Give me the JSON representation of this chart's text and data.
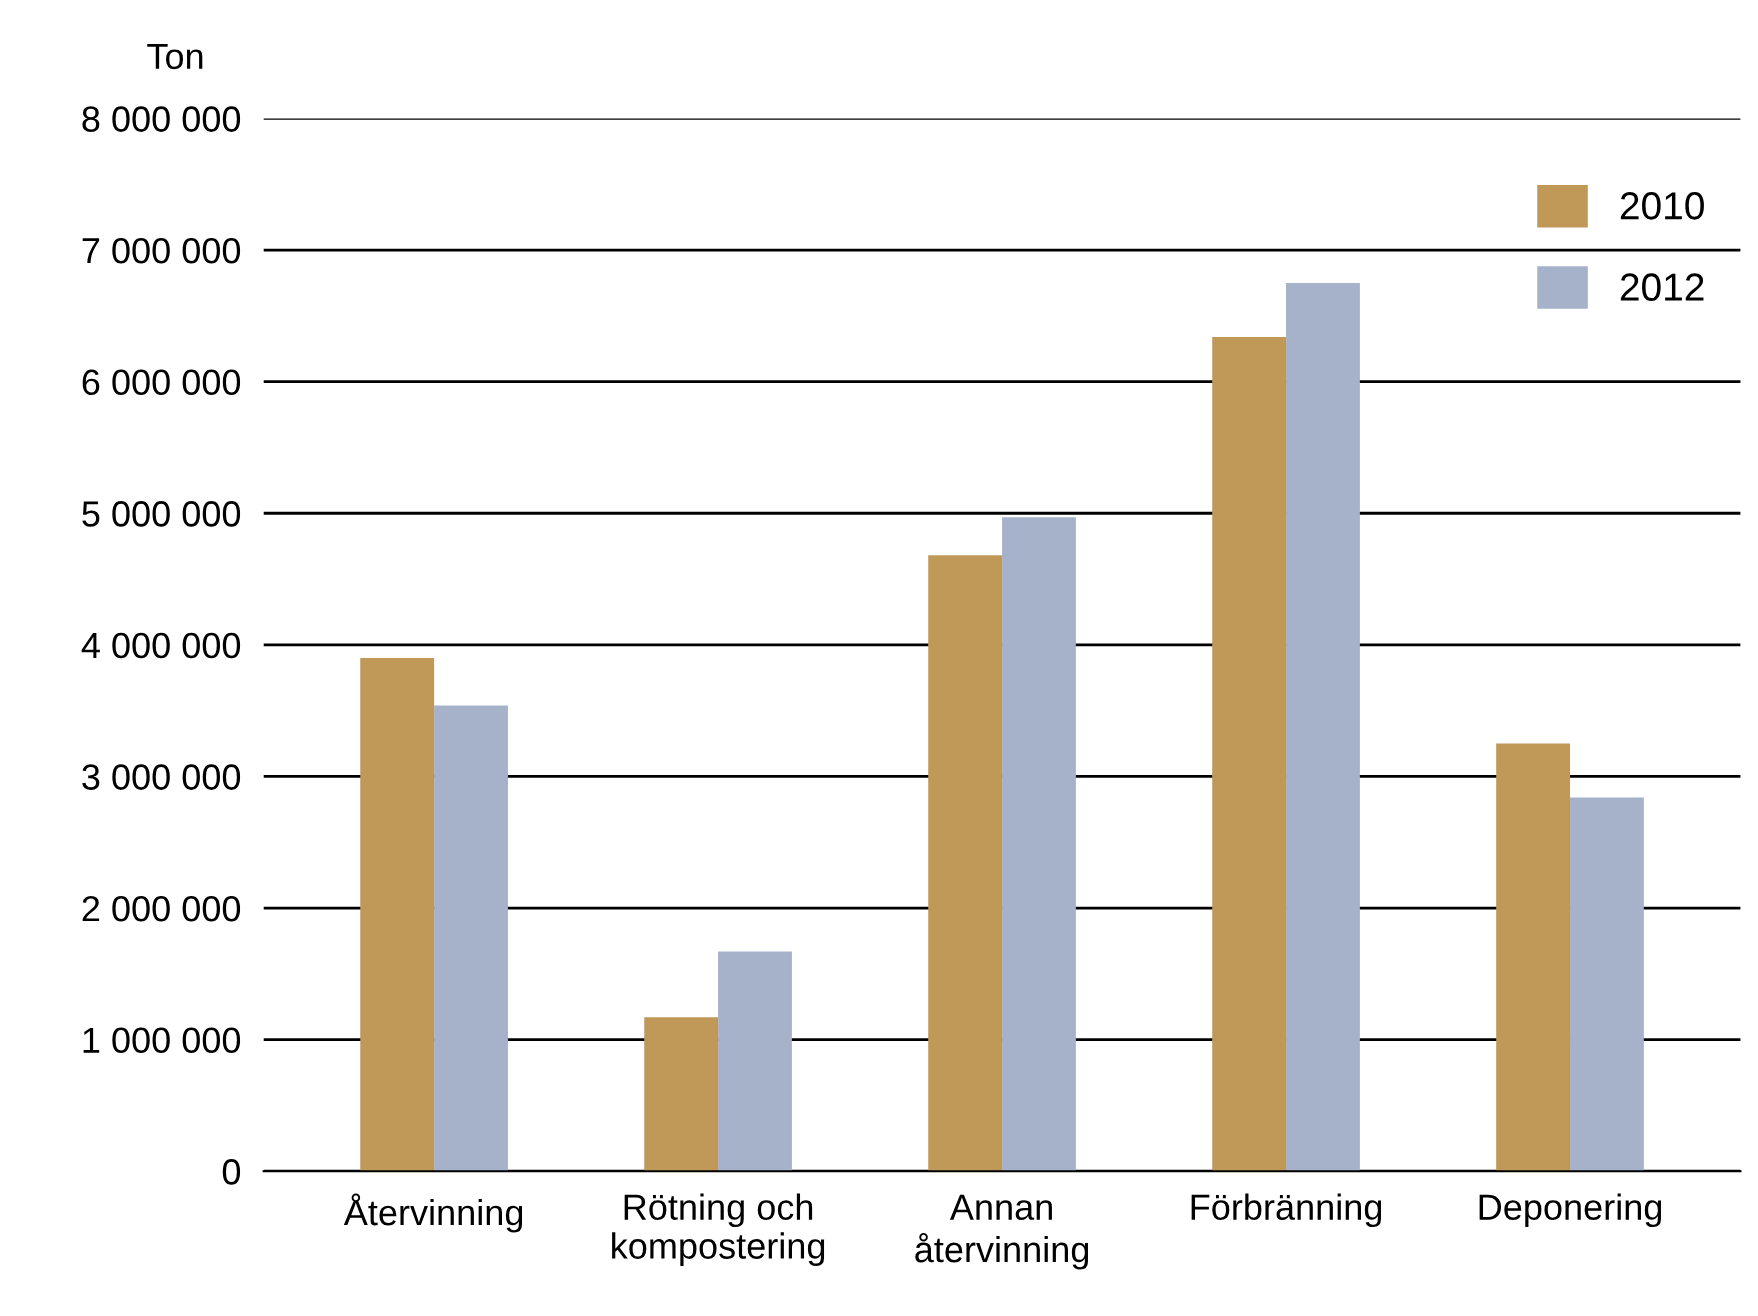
{
  "chart_data": {
    "type": "bar",
    "ylabel": "Ton",
    "categories": [
      "Återvinning",
      "Rötning och\nkompostering",
      "Annan\nåtervinning",
      "Förbränning",
      "Deponering"
    ],
    "series": [
      {
        "name": "2010",
        "color": "#c09858",
        "values": [
          3900000,
          1170000,
          4680000,
          6340000,
          3250000
        ]
      },
      {
        "name": "2012",
        "color": "#a6b1ca",
        "values": [
          3540000,
          1670000,
          4970000,
          6750000,
          2840000
        ]
      }
    ],
    "ylim": [
      0,
      8000000
    ],
    "yticks": [
      0,
      {
        "value": 1000000,
        "label": "1 000 000"
      },
      {
        "value": 2000000,
        "label": "2 000 000"
      },
      {
        "value": 3000000,
        "label": "3 000 000"
      },
      {
        "value": 4000000,
        "label": "4 000 000"
      },
      {
        "value": 5000000,
        "label": "5 000 000"
      },
      {
        "value": 6000000,
        "label": "6 000 000"
      },
      {
        "value": 7000000,
        "label": "7 000 000"
      },
      {
        "value": 8000000,
        "label": "8 000 000"
      }
    ],
    "grid": "y",
    "legend": "top right"
  }
}
